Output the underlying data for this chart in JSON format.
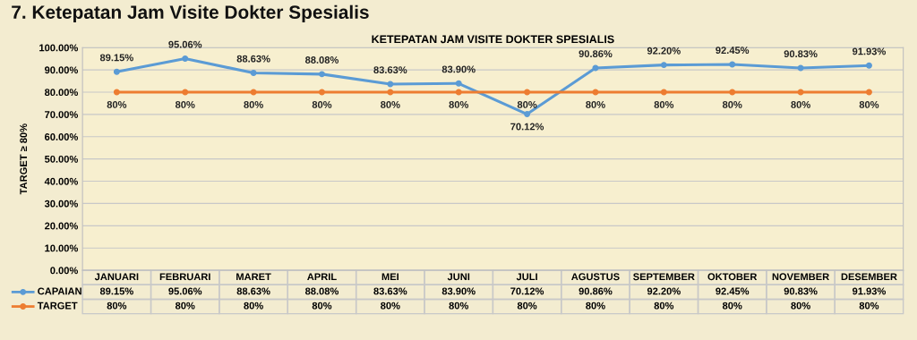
{
  "chart_data": {
    "type": "line",
    "title": "7. Ketepatan Jam Visite Dokter Spesialis",
    "subtitle": "KETEPATAN JAM VISITE DOKTER SPESIALIS",
    "ylabel": "TARGET ≥ 80%",
    "categories": [
      "JANUARI",
      "FEBRUARI",
      "MARET",
      "APRIL",
      "MEI",
      "JUNI",
      "JULI",
      "AGUSTUS",
      "SEPTEMBER",
      "OKTOBER",
      "NOVEMBER",
      "DESEMBER"
    ],
    "series": [
      {
        "name": "CAPAIAN",
        "color": "#5b9bd5",
        "values": [
          89.15,
          95.06,
          88.63,
          88.08,
          83.63,
          83.9,
          70.12,
          90.86,
          92.2,
          92.45,
          90.83,
          91.93
        ],
        "value_labels": [
          "89.15%",
          "95.06%",
          "88.63%",
          "88.08%",
          "83.63%",
          "83.90%",
          "70.12%",
          "90.86%",
          "92.20%",
          "92.45%",
          "90.83%",
          "91.93%"
        ]
      },
      {
        "name": "TARGET",
        "color": "#ed7d31",
        "values": [
          80,
          80,
          80,
          80,
          80,
          80,
          80,
          80,
          80,
          80,
          80,
          80
        ],
        "value_labels": [
          "80%",
          "80%",
          "80%",
          "80%",
          "80%",
          "80%",
          "80%",
          "80%",
          "80%",
          "80%",
          "80%",
          "80%"
        ]
      }
    ],
    "ylim": [
      0,
      100
    ],
    "yticks": [
      {
        "value": 0,
        "label": "0.00%"
      },
      {
        "value": 10,
        "label": "10.00%"
      },
      {
        "value": 20,
        "label": "20.00%"
      },
      {
        "value": 30,
        "label": "30.00%"
      },
      {
        "value": 40,
        "label": "40.00%"
      },
      {
        "value": 50,
        "label": "50.00%"
      },
      {
        "value": 60,
        "label": "60.00%"
      },
      {
        "value": 70,
        "label": "70.00%"
      },
      {
        "value": 80,
        "label": "80.00%"
      },
      {
        "value": 90,
        "label": "90.00%"
      },
      {
        "value": 100,
        "label": "100.00%"
      }
    ],
    "grid": "y",
    "legend": "bottom",
    "marker": "circle",
    "line_style": "solid"
  }
}
